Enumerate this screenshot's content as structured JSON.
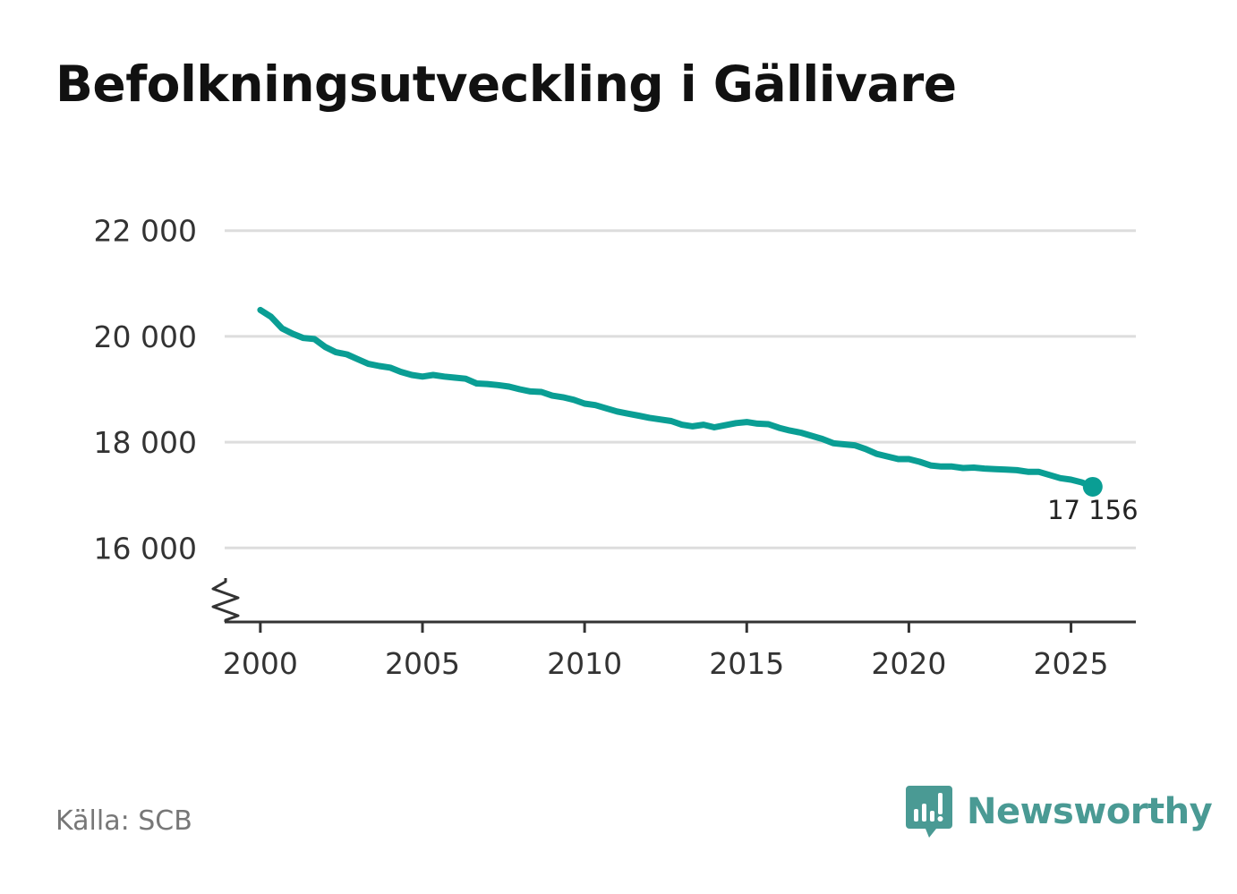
{
  "title": "Befolkningsutveckling i Gällivare",
  "source": "Källa: SCB",
  "brand": {
    "name": "Newsworthy",
    "logo_icon": "bar-chart-speech-bubble-icon"
  },
  "colors": {
    "line": "#0a9e94",
    "grid": "#dddddd",
    "axis": "#333333",
    "brand": "#4a9a94"
  },
  "chart_data": {
    "type": "line",
    "title": "Befolkningsutveckling i Gällivare",
    "xlabel": "",
    "ylabel": "",
    "xlim": [
      1998.9,
      2027.0
    ],
    "ylim": [
      14600,
      22300
    ],
    "x_ticks": [
      2000,
      2005,
      2010,
      2015,
      2020,
      2025
    ],
    "x_tick_labels": [
      "2000",
      "2005",
      "2010",
      "2015",
      "2020",
      "2025"
    ],
    "y_ticks": [
      16000,
      18000,
      20000,
      22000
    ],
    "y_tick_labels": [
      "16 000",
      "18 000",
      "20 000",
      "22 000"
    ],
    "grid": "horizontal",
    "y_axis_break": true,
    "end_label": "17 156",
    "series": [
      {
        "x": [
          2000.0,
          2000.33,
          2000.67,
          2001.0,
          2001.33,
          2001.67,
          2002.0,
          2002.33,
          2002.67,
          2003.0,
          2003.33,
          2003.67,
          2004.0,
          2004.33,
          2004.67,
          2005.0,
          2005.33,
          2005.67,
          2006.0,
          2006.33,
          2006.67,
          2007.0,
          2007.33,
          2007.67,
          2008.0,
          2008.33,
          2008.67,
          2009.0,
          2009.33,
          2009.67,
          2010.0,
          2010.33,
          2010.67,
          2011.0,
          2011.33,
          2011.67,
          2012.0,
          2012.33,
          2012.67,
          2013.0,
          2013.33,
          2013.67,
          2014.0,
          2014.33,
          2014.67,
          2015.0,
          2015.33,
          2015.67,
          2016.0,
          2016.33,
          2016.67,
          2017.0,
          2017.33,
          2017.67,
          2018.0,
          2018.33,
          2018.67,
          2019.0,
          2019.33,
          2019.67,
          2020.0,
          2020.33,
          2020.67,
          2021.0,
          2021.33,
          2021.67,
          2022.0,
          2022.33,
          2022.67,
          2023.0,
          2023.33,
          2023.67,
          2024.0,
          2024.33,
          2024.67,
          2025.0,
          2025.33,
          2025.67
        ],
        "values": [
          20500,
          20370,
          20150,
          20050,
          19970,
          19950,
          19800,
          19700,
          19660,
          19570,
          19480,
          19440,
          19410,
          19330,
          19270,
          19240,
          19270,
          19240,
          19220,
          19200,
          19110,
          19100,
          19080,
          19050,
          19000,
          18960,
          18950,
          18880,
          18850,
          18800,
          18730,
          18700,
          18640,
          18580,
          18540,
          18500,
          18460,
          18430,
          18400,
          18330,
          18300,
          18330,
          18280,
          18320,
          18360,
          18380,
          18350,
          18340,
          18270,
          18220,
          18180,
          18120,
          18060,
          17980,
          17960,
          17940,
          17870,
          17780,
          17730,
          17680,
          17680,
          17630,
          17560,
          17540,
          17540,
          17510,
          17520,
          17500,
          17490,
          17480,
          17470,
          17440,
          17440,
          17380,
          17320,
          17290,
          17240,
          17156
        ]
      }
    ]
  }
}
